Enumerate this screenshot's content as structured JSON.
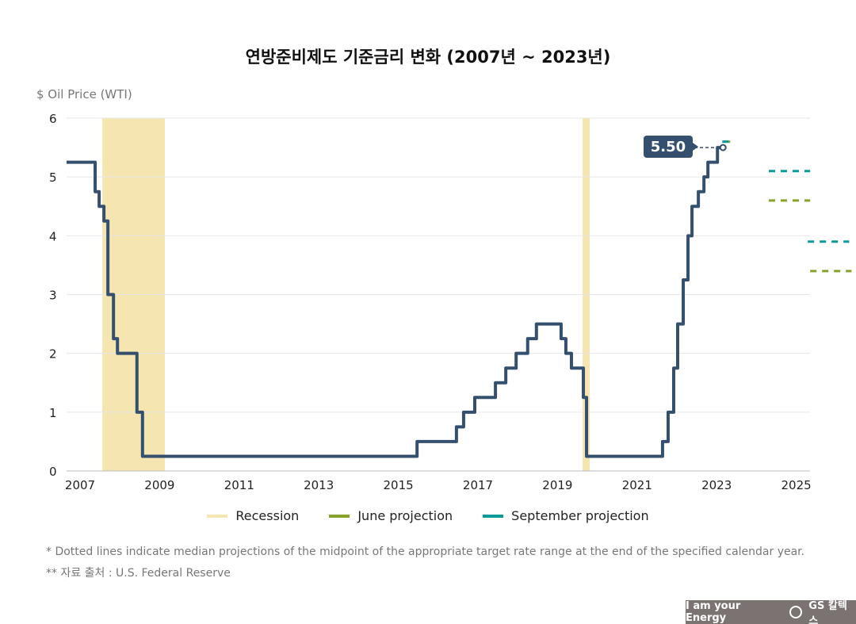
{
  "chart_data": {
    "type": "line",
    "title": "연방준비제도 기준금리 변화 (2007년 ~ 2023년)",
    "ylabel": "$ Oil Price (WTI)",
    "xlabel": "",
    "xlim": [
      2006.66,
      2025.35
    ],
    "ylim": [
      0,
      6
    ],
    "grid": true,
    "legend_position": "bottom",
    "x_ticks": [
      "2007",
      "2009",
      "2011",
      "2013",
      "2015",
      "2017",
      "2019",
      "2021",
      "2023",
      "2025"
    ],
    "y_ticks": [
      "0",
      "1",
      "2",
      "3",
      "4",
      "5",
      "6"
    ],
    "rate_series": {
      "color": "#34506e",
      "step_x": [
        2006.66,
        2007.38,
        2007.48,
        2007.6,
        2007.7,
        2007.84,
        2007.94,
        2008.43,
        2008.57,
        2015.47,
        2016.46,
        2016.64,
        2016.92,
        2017.44,
        2017.7,
        2017.96,
        2018.25,
        2018.47,
        2019.09,
        2019.21,
        2019.35,
        2019.65,
        2019.73,
        2021.64,
        2021.78,
        2021.92,
        2022.02,
        2022.16,
        2022.28,
        2022.38,
        2022.54,
        2022.68,
        2022.78,
        2023.02
      ],
      "step_y": [
        5.25,
        4.75,
        4.5,
        4.25,
        3.0,
        2.25,
        2.0,
        1.0,
        0.25,
        0.5,
        0.75,
        1.0,
        1.25,
        1.5,
        1.75,
        2.0,
        2.25,
        2.5,
        2.25,
        2.0,
        1.75,
        1.25,
        0.25,
        0.5,
        1.0,
        1.75,
        2.5,
        3.25,
        4.0,
        4.5,
        4.75,
        5.0,
        5.25,
        5.5
      ],
      "end_x": 2023.16
    },
    "current_label": "5.50",
    "recessions": [
      {
        "start": 2007.56,
        "end": 2009.13
      },
      {
        "start": 2019.63,
        "end": 2019.81
      }
    ],
    "series": [
      {
        "name": "Recession",
        "color": "#f5e5b0"
      },
      {
        "name": "June projection",
        "color": "#86a22a",
        "segments": [
          {
            "x0": 2023.18,
            "x1": 2023.46,
            "y": 5.6
          },
          {
            "x0": 2024.31,
            "x1": 2025.35,
            "y": 4.6
          },
          {
            "x0": 2025.35,
            "x1": 2026.39,
            "y": 3.4
          }
        ]
      },
      {
        "name": "September projection",
        "color": "#0b9a9a",
        "segments": [
          {
            "x0": 2023.14,
            "x1": 2023.3,
            "y": 5.6
          },
          {
            "x0": 2024.31,
            "x1": 2025.35,
            "y": 5.1
          },
          {
            "x0": 2025.29,
            "x1": 2026.33,
            "y": 3.9
          }
        ]
      }
    ]
  },
  "notes": [
    "* Dotted lines indicate median projections of the midpoint of the appropriate target rate range at the end of the specified calendar year.",
    "** 자료 출처 : U.S. Federal Reserve"
  ],
  "footer": {
    "slogan": "I am your Energy",
    "brand": "GS 칼텍스"
  }
}
